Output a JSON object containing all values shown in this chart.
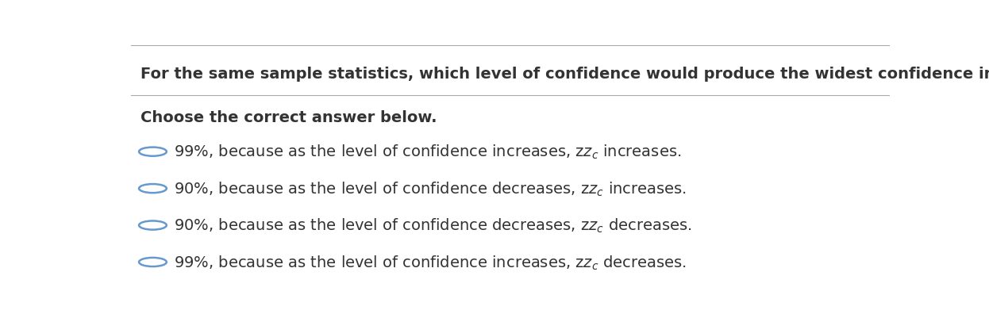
{
  "background_color": "#ffffff",
  "question": "For the same sample statistics, which level of confidence would produce the widest confidence interval?",
  "instruction": "Choose the correct answer below.",
  "option_parts": [
    {
      "before": "99%, because as the level of confidence increases, z",
      "sub": "c",
      "after": " increases."
    },
    {
      "before": "90%, because as the level of confidence decreases, z",
      "sub": "c",
      "after": " increases."
    },
    {
      "before": "90%, because as the level of confidence decreases, z",
      "sub": "c",
      "after": " decreases."
    },
    {
      "before": "99%, because as the level of confidence increases, z",
      "sub": "c",
      "after": " decreases."
    }
  ],
  "circle_color": "#6699cc",
  "text_color": "#333333",
  "separator_color": "#aaaaaa",
  "question_fontsize": 14,
  "instruction_fontsize": 14,
  "option_fontsize": 14
}
